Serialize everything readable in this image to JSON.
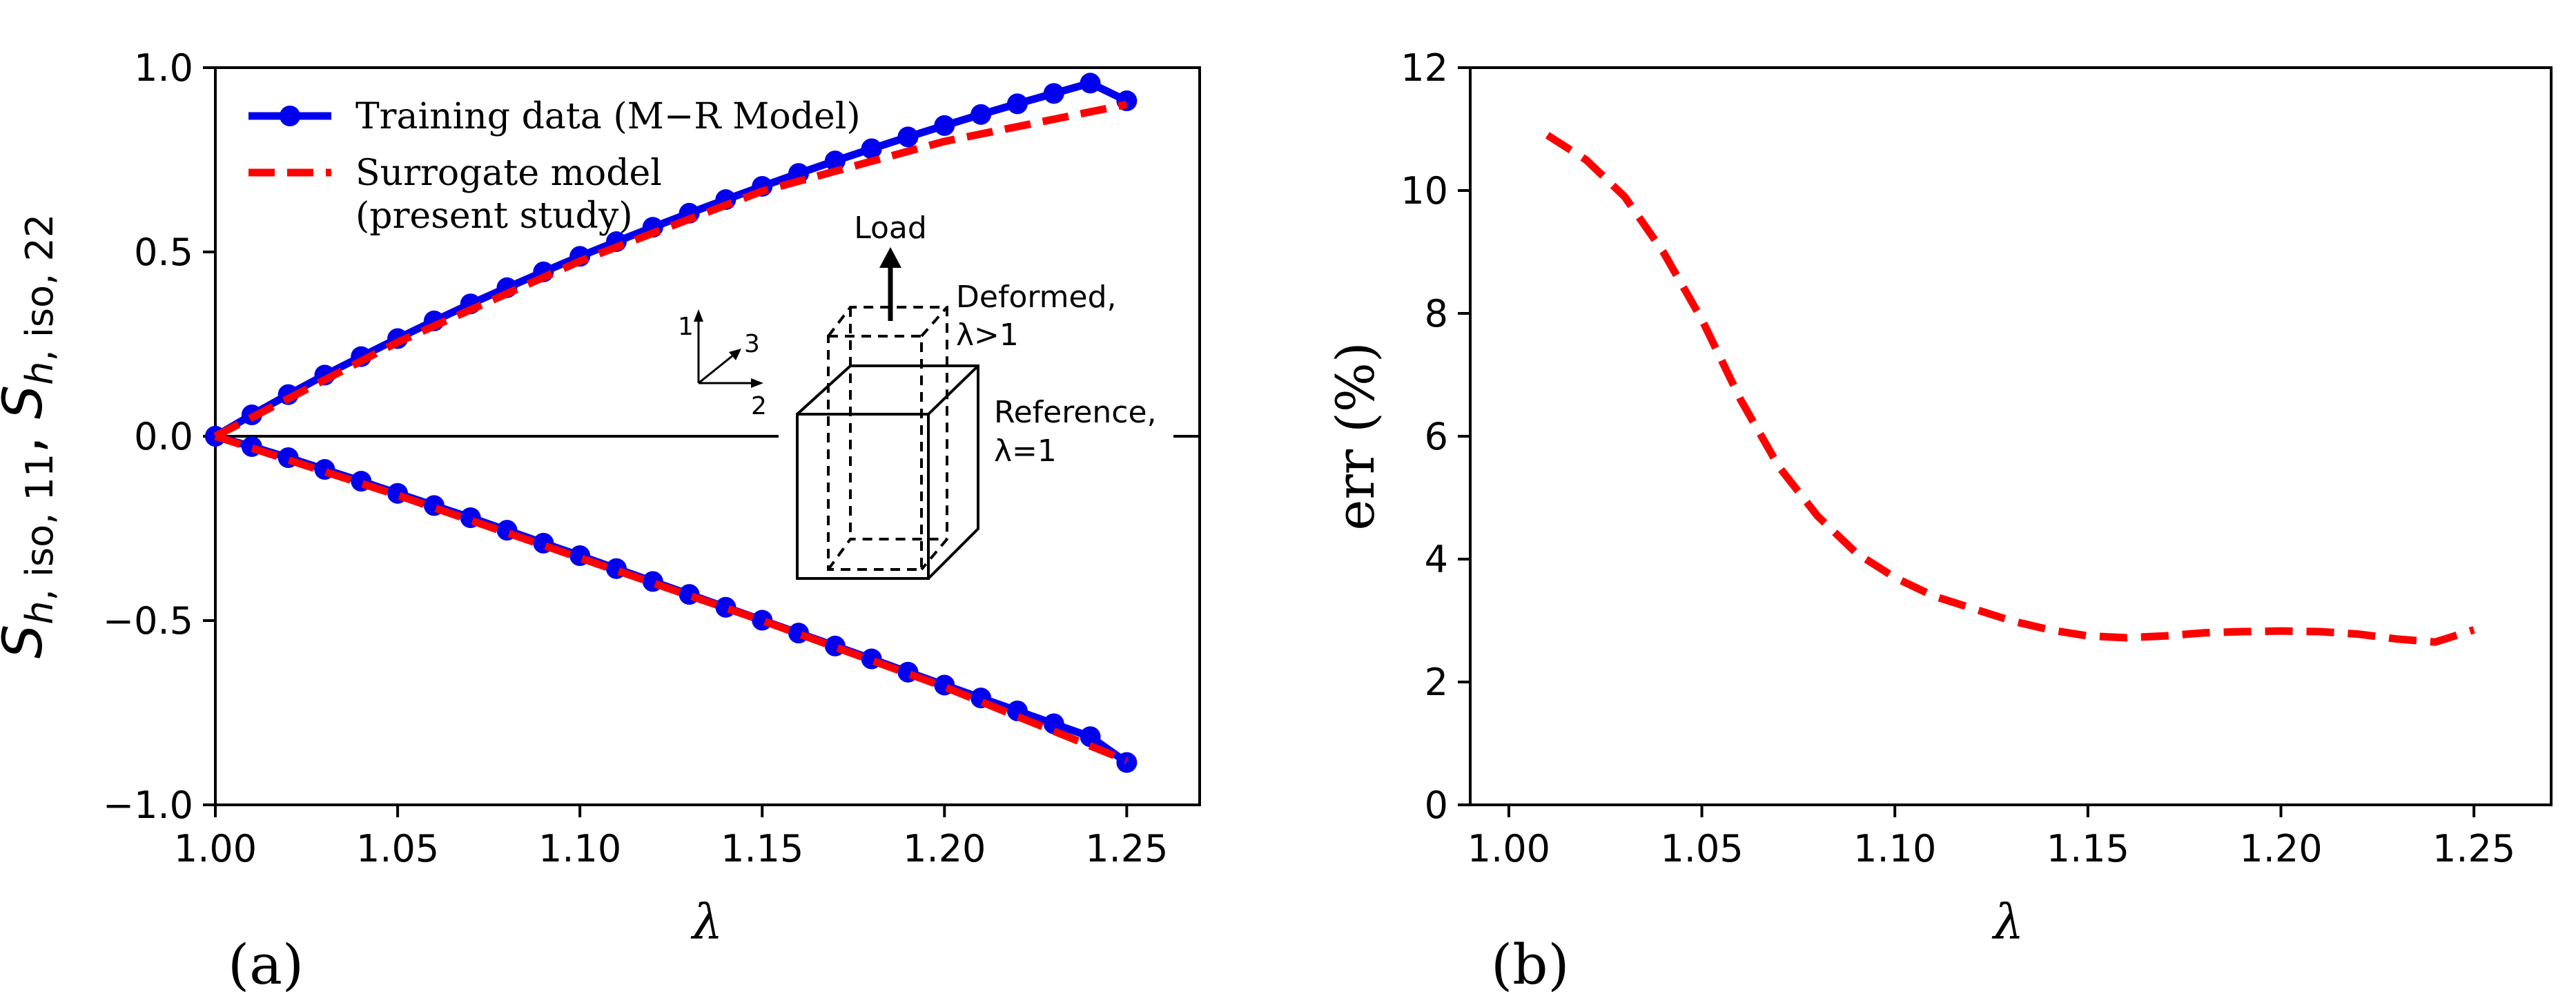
{
  "chart_data": [
    {
      "type": "line",
      "panel_label": "(a)",
      "xlabel": "λ",
      "ylabel": {
        "parts": [
          {
            "text": "S",
            "style": "italic"
          },
          {
            "text": "h",
            "style": "italic-sub"
          },
          {
            "text": ", iso, 11",
            "style": "sub"
          },
          {
            "text": ", ",
            "style": "normal"
          },
          {
            "text": "S",
            "style": "italic"
          },
          {
            "text": "h",
            "style": "italic-sub"
          },
          {
            "text": ", iso, 22",
            "style": "sub"
          }
        ]
      },
      "xlim": [
        1.0,
        1.27
      ],
      "ylim": [
        -1.0,
        1.0
      ],
      "xticks": [
        "1.00",
        "1.05",
        "1.10",
        "1.15",
        "1.20",
        "1.25"
      ],
      "xtick_values": [
        1.0,
        1.05,
        1.1,
        1.15,
        1.2,
        1.25
      ],
      "yticks": [
        "1.0",
        "0.5",
        "0.0",
        "−0.5",
        "−1.0"
      ],
      "ytick_values": [
        1.0,
        0.5,
        0.0,
        -0.5,
        -1.0
      ],
      "hline": 0.0,
      "legend": {
        "position": "top-left",
        "entries": [
          {
            "label": "Training data (M−R Model)",
            "color": "#0000ee",
            "style": "solid-marker"
          },
          {
            "label_lines": [
              "Surrogate model",
              "(present study)"
            ],
            "color": "#ff0000",
            "style": "dashed"
          }
        ]
      },
      "series": [
        {
          "name": "Training data (M−R Model), S11",
          "color": "#0000ee",
          "x": [
            1.0,
            1.01,
            1.02,
            1.03,
            1.04,
            1.05,
            1.06,
            1.07,
            1.08,
            1.09,
            1.1,
            1.11,
            1.12,
            1.13,
            1.14,
            1.15,
            1.16,
            1.17,
            1.18,
            1.19,
            1.2,
            1.21,
            1.22,
            1.23,
            1.24,
            1.25
          ],
          "y": [
            0.0,
            0.058,
            0.113,
            0.166,
            0.216,
            0.265,
            0.313,
            0.359,
            0.403,
            0.446,
            0.488,
            0.528,
            0.567,
            0.605,
            0.642,
            0.678,
            0.713,
            0.747,
            0.78,
            0.812,
            0.843,
            0.873,
            0.902,
            0.93,
            0.958,
            0.91
          ]
        },
        {
          "name": "Training data (M−R Model), S22",
          "color": "#0000ee",
          "x": [
            1.0,
            1.01,
            1.02,
            1.03,
            1.04,
            1.05,
            1.06,
            1.07,
            1.08,
            1.09,
            1.1,
            1.11,
            1.12,
            1.13,
            1.14,
            1.15,
            1.16,
            1.17,
            1.18,
            1.19,
            1.2,
            1.21,
            1.22,
            1.23,
            1.24,
            1.25
          ],
          "y": [
            0.0,
            -0.028,
            -0.058,
            -0.09,
            -0.122,
            -0.155,
            -0.188,
            -0.221,
            -0.255,
            -0.29,
            -0.324,
            -0.359,
            -0.394,
            -0.429,
            -0.464,
            -0.499,
            -0.534,
            -0.569,
            -0.604,
            -0.64,
            -0.675,
            -0.71,
            -0.745,
            -0.78,
            -0.815,
            -0.885
          ]
        },
        {
          "name": "Surrogate model (present study), S11",
          "color": "#ff0000",
          "x": [
            1.0,
            1.05,
            1.1,
            1.15,
            1.2,
            1.25
          ],
          "y": [
            0.0,
            0.255,
            0.475,
            0.665,
            0.8,
            0.9
          ]
        },
        {
          "name": "Surrogate model (present study), S22",
          "color": "#ff0000",
          "x": [
            1.0,
            1.05,
            1.1,
            1.15,
            1.2,
            1.25
          ],
          "y": [
            0.0,
            -0.16,
            -0.33,
            -0.5,
            -0.68,
            -0.88
          ]
        }
      ],
      "inset": {
        "load_label": "Load",
        "deformed_label": [
          "Deformed,",
          "λ>1"
        ],
        "reference_label": [
          "Reference,",
          "λ=1"
        ],
        "axis_labels": [
          "1",
          "3",
          "2"
        ]
      }
    },
    {
      "type": "line",
      "panel_label": "(b)",
      "xlabel": "λ",
      "ylabel": "err (%)",
      "xlim": [
        0.99,
        1.27
      ],
      "ylim": [
        0,
        12
      ],
      "xticks": [
        "1.00",
        "1.05",
        "1.10",
        "1.15",
        "1.20",
        "1.25"
      ],
      "xtick_values": [
        1.0,
        1.05,
        1.1,
        1.15,
        1.2,
        1.25
      ],
      "yticks": [
        "12",
        "10",
        "8",
        "6",
        "4",
        "2",
        "0"
      ],
      "ytick_values": [
        12,
        10,
        8,
        6,
        4,
        2,
        0
      ],
      "series": [
        {
          "name": "err",
          "color": "#ff0000",
          "style": "dashed",
          "x": [
            1.01,
            1.02,
            1.03,
            1.04,
            1.05,
            1.06,
            1.07,
            1.08,
            1.09,
            1.1,
            1.11,
            1.12,
            1.13,
            1.14,
            1.15,
            1.16,
            1.17,
            1.18,
            1.19,
            1.2,
            1.21,
            1.22,
            1.23,
            1.24,
            1.25
          ],
          "y": [
            10.9,
            10.5,
            9.9,
            9.0,
            7.9,
            6.6,
            5.5,
            4.7,
            4.1,
            3.7,
            3.4,
            3.2,
            3.0,
            2.85,
            2.75,
            2.72,
            2.75,
            2.8,
            2.82,
            2.83,
            2.82,
            2.78,
            2.7,
            2.65,
            2.85
          ]
        }
      ]
    }
  ]
}
